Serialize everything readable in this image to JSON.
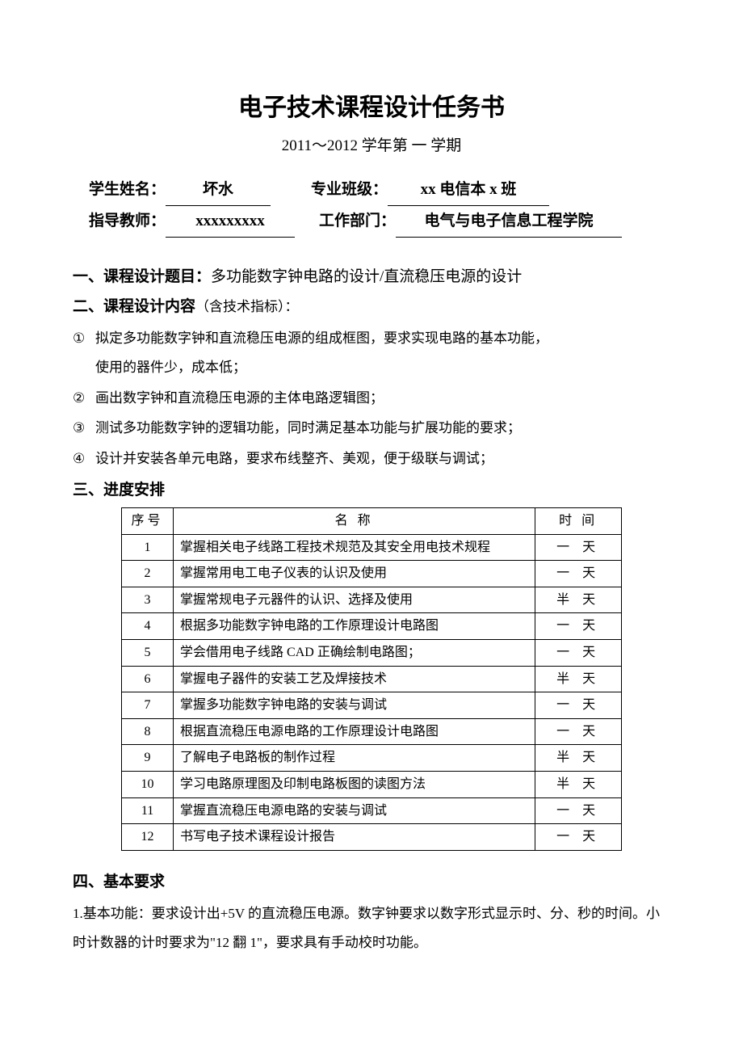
{
  "title": "电子技术课程设计任务书",
  "subtitle": "2011～2012 学年第 一 学期",
  "info": {
    "name_label": "学生姓名：",
    "name_value": "坏水",
    "class_label": "专业班级：",
    "class_value": "xx 电信本 x 班",
    "teacher_label": "指导教师：",
    "teacher_value": "xxxxxxxxx",
    "dept_label": "工作部门：",
    "dept_value": "电气与电子信息工程学院"
  },
  "section1": {
    "head": "一、课程设计题目：",
    "text": "多功能数字钟电路的设计/直流稳压电源的设计"
  },
  "section2": {
    "head": "二、课程设计内容",
    "suffix": "（含技术指标）：",
    "items": [
      {
        "num": "①",
        "text": "拟定多功能数字钟和直流稳压电源的组成框图，要求实现电路的基本功能，",
        "cont": "使用的器件少，成本低；"
      },
      {
        "num": "②",
        "text": "画出数字钟和直流稳压电源的主体电路逻辑图；"
      },
      {
        "num": "③",
        "text": "测试多功能数字钟的逻辑功能，同时满足基本功能与扩展功能的要求；"
      },
      {
        "num": "④",
        "text": "设计并安装各单元电路，要求布线整齐、美观，便于级联与调试；"
      }
    ]
  },
  "section3": {
    "head": "三、进度安排",
    "columns": {
      "c1": "序号",
      "c2": "名    称",
      "c3": "时  间"
    },
    "rows": [
      {
        "n": "1",
        "name": "掌握相关电子线路工程技术规范及其安全用电技术规程",
        "time": "一 天"
      },
      {
        "n": "2",
        "name": "掌握常用电工电子仪表的认识及使用",
        "time": "一 天"
      },
      {
        "n": "3",
        "name": "掌握常规电子元器件的认识、选择及使用",
        "time": "半 天"
      },
      {
        "n": "4",
        "name": "根据多功能数字钟电路的工作原理设计电路图",
        "time": "一 天"
      },
      {
        "n": "5",
        "name": "学会借用电子线路 CAD 正确绘制电路图；",
        "time": "一 天"
      },
      {
        "n": "6",
        "name": "掌握电子器件的安装工艺及焊接技术",
        "time": "半 天"
      },
      {
        "n": "7",
        "name": "掌握多功能数字钟电路的安装与调试",
        "time": "一 天"
      },
      {
        "n": "8",
        "name": "根据直流稳压电源电路的工作原理设计电路图",
        "time": "一 天"
      },
      {
        "n": "9",
        "name": "了解电子电路板的制作过程",
        "time": "半 天"
      },
      {
        "n": "10",
        "name": "学习电路原理图及印制电路板图的读图方法",
        "time": "半 天"
      },
      {
        "n": "11",
        "name": "掌握直流稳压电源电路的安装与调试",
        "time": "一 天"
      },
      {
        "n": "12",
        "name": "书写电子技术课程设计报告",
        "time": "一 天"
      }
    ]
  },
  "section4": {
    "head": "四、基本要求",
    "para": "1.基本功能：要求设计出+5V 的直流稳压电源。数字钟要求以数字形式显示时、分、秒的时间。小时计数器的计时要求为\"12 翻 1\"，要求具有手动校时功能。"
  }
}
